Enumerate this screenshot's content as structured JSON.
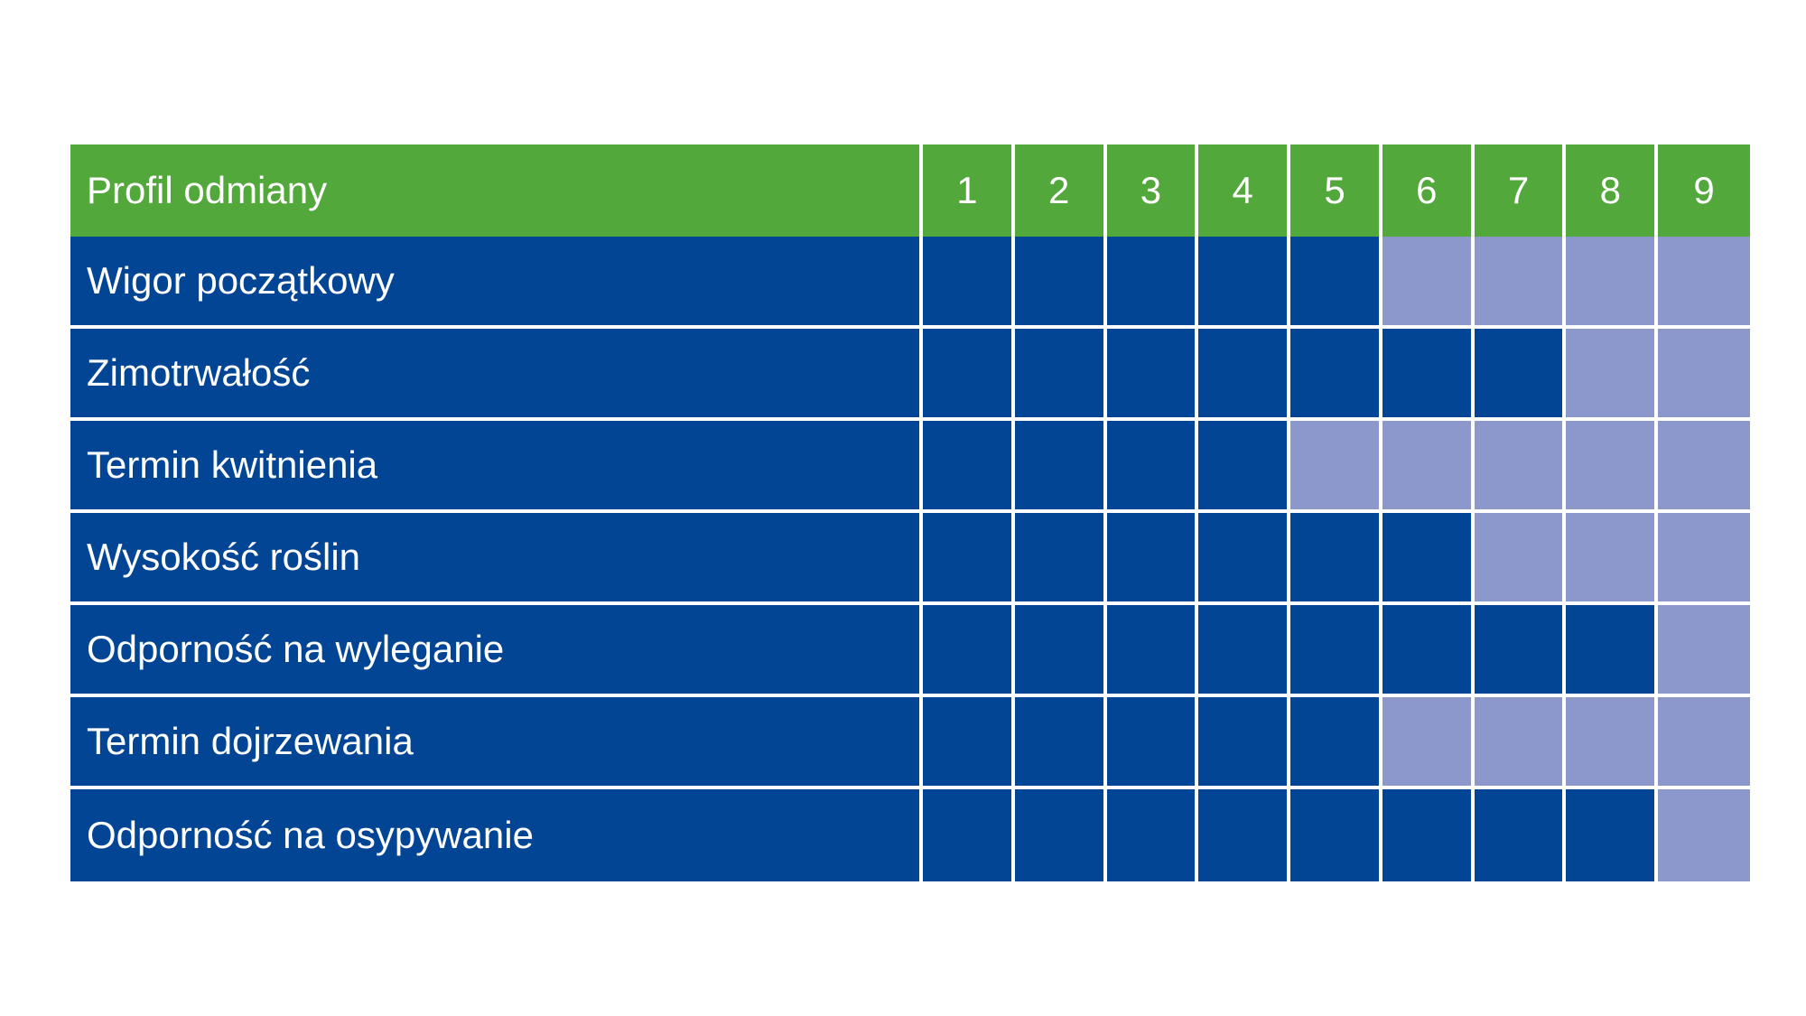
{
  "chart_data": {
    "type": "table",
    "header": {
      "label": "Profil odmiany",
      "scale": [
        "1",
        "2",
        "3",
        "4",
        "5",
        "6",
        "7",
        "8",
        "9"
      ]
    },
    "scale_max": 9,
    "rows": [
      {
        "label": "Wigor początkowy",
        "value": 5
      },
      {
        "label": "Zimotrwałość",
        "value": 7
      },
      {
        "label": "Termin kwitnienia",
        "value": 4
      },
      {
        "label": "Wysokość roślin",
        "value": 6
      },
      {
        "label": "Odporność na wyleganie",
        "value": 8
      },
      {
        "label": "Termin dojrzewania",
        "value": 5
      },
      {
        "label": "Odporność na osypywanie",
        "value": 8
      }
    ],
    "colors": {
      "header": "#52a83a",
      "filled": "#034595",
      "empty": "#8c98cb"
    }
  }
}
